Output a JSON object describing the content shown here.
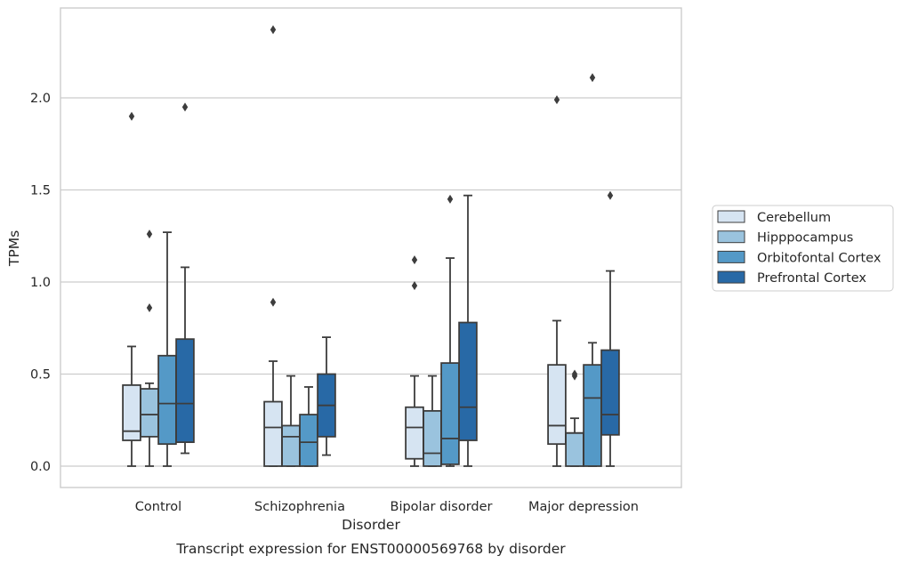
{
  "chart_data": {
    "type": "box",
    "caption": "Transcript expression for ENST00000569768 by disorder",
    "xlabel": "Disorder",
    "ylabel": "TPMs",
    "ylim": [
      -0.11,
      2.48
    ],
    "yticks": [
      "0.0",
      "0.5",
      "1.0",
      "1.5",
      "2.0"
    ],
    "grid": "horizontal",
    "legend_position": "right",
    "categories": [
      "Control",
      "Schizophrenia",
      "Bipolar disorder",
      "Major depression"
    ],
    "series": [
      {
        "name": "Cerebellum",
        "color": "#d6e4f2",
        "boxes": [
          {
            "whislo": 0.0,
            "q1": 0.14,
            "med": 0.19,
            "q3": 0.44,
            "whishi": 0.65,
            "fliers": [
              1.9
            ]
          },
          {
            "whislo": 0.0,
            "q1": 0.0,
            "med": 0.21,
            "q3": 0.35,
            "whishi": 0.57,
            "fliers": [
              0.89,
              2.37
            ]
          },
          {
            "whislo": 0.0,
            "q1": 0.04,
            "med": 0.21,
            "q3": 0.32,
            "whishi": 0.49,
            "fliers": [
              0.98,
              1.12
            ]
          },
          {
            "whislo": 0.0,
            "q1": 0.12,
            "med": 0.22,
            "q3": 0.55,
            "whishi": 0.79,
            "fliers": [
              1.99
            ]
          }
        ]
      },
      {
        "name": "Hipppocampus",
        "color": "#9ac3de",
        "boxes": [
          {
            "whislo": 0.0,
            "q1": 0.16,
            "med": 0.28,
            "q3": 0.42,
            "whishi": 0.45,
            "fliers": [
              0.86,
              1.26
            ]
          },
          {
            "whislo": 0.0,
            "q1": 0.0,
            "med": 0.16,
            "q3": 0.22,
            "whishi": 0.49,
            "fliers": []
          },
          {
            "whislo": 0.0,
            "q1": 0.0,
            "med": 0.07,
            "q3": 0.3,
            "whishi": 0.49,
            "fliers": []
          },
          {
            "whislo": 0.0,
            "q1": 0.0,
            "med": 0.18,
            "q3": 0.18,
            "whishi": 0.26,
            "fliers": [
              0.49,
              0.5
            ]
          }
        ]
      },
      {
        "name": "Orbitofontal Cortex",
        "color": "#5499c7",
        "boxes": [
          {
            "whislo": 0.0,
            "q1": 0.12,
            "med": 0.34,
            "q3": 0.6,
            "whishi": 1.27,
            "fliers": []
          },
          {
            "whislo": 0.0,
            "q1": 0.0,
            "med": 0.13,
            "q3": 0.28,
            "whishi": 0.43,
            "fliers": []
          },
          {
            "whislo": 0.0,
            "q1": 0.01,
            "med": 0.15,
            "q3": 0.56,
            "whishi": 1.13,
            "fliers": [
              1.45
            ]
          },
          {
            "whislo": 0.0,
            "q1": 0.0,
            "med": 0.37,
            "q3": 0.55,
            "whishi": 0.67,
            "fliers": [
              2.11
            ]
          }
        ]
      },
      {
        "name": "Prefrontal Cortex",
        "color": "#2869a6",
        "boxes": [
          {
            "whislo": 0.07,
            "q1": 0.13,
            "med": 0.34,
            "q3": 0.69,
            "whishi": 1.08,
            "fliers": [
              1.95
            ]
          },
          {
            "whislo": 0.06,
            "q1": 0.16,
            "med": 0.33,
            "q3": 0.5,
            "whishi": 0.7,
            "fliers": []
          },
          {
            "whislo": 0.0,
            "q1": 0.14,
            "med": 0.32,
            "q3": 0.78,
            "whishi": 1.47,
            "fliers": []
          },
          {
            "whislo": 0.0,
            "q1": 0.17,
            "med": 0.28,
            "q3": 0.63,
            "whishi": 1.06,
            "fliers": [
              1.47
            ]
          }
        ]
      }
    ]
  }
}
